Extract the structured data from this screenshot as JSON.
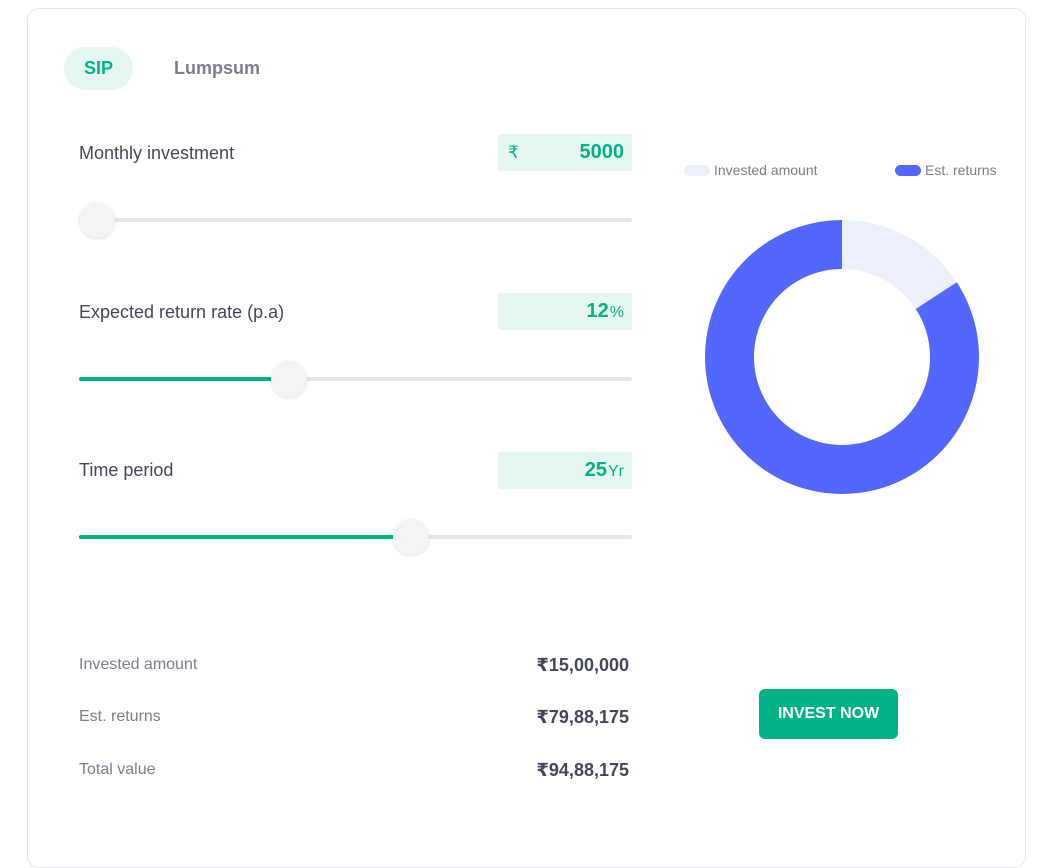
{
  "tabs": [
    {
      "label": "SIP",
      "active": true
    },
    {
      "label": "Lumpsum",
      "active": false
    }
  ],
  "inputs": {
    "monthly": {
      "label": "Monthly investment",
      "prefix": "₹",
      "value": "5000",
      "unit": "",
      "slider_fraction": 0.0
    },
    "rate": {
      "label": "Expected return rate (p.a)",
      "prefix": "",
      "value": "12",
      "unit": "%",
      "slider_fraction": 0.38
    },
    "period": {
      "label": "Time period",
      "prefix": "",
      "value": "25",
      "unit": "Yr",
      "slider_fraction": 0.6
    }
  },
  "summary": [
    {
      "label": "Invested amount",
      "value": "₹15,00,000"
    },
    {
      "label": "Est. returns",
      "value": "₹79,88,175"
    },
    {
      "label": "Total value",
      "value": "₹94,88,175"
    }
  ],
  "legend": {
    "invested": {
      "label": "Invested amount",
      "color": "#eceffc"
    },
    "returns": {
      "label": "Est. returns",
      "color": "#5367ff"
    }
  },
  "chart_data": {
    "type": "pie",
    "categories": [
      "Invested amount",
      "Est. returns"
    ],
    "values": [
      1500000,
      7988175
    ],
    "colors": [
      "#eceffc",
      "#5367ff"
    ],
    "donut": true,
    "legend_position": "top"
  },
  "cta": {
    "label": "INVEST NOW"
  },
  "colors": {
    "accent": "#00b386",
    "accent_light": "#e6f7f1",
    "text": "#44475b",
    "muted": "#7c7e8c"
  }
}
